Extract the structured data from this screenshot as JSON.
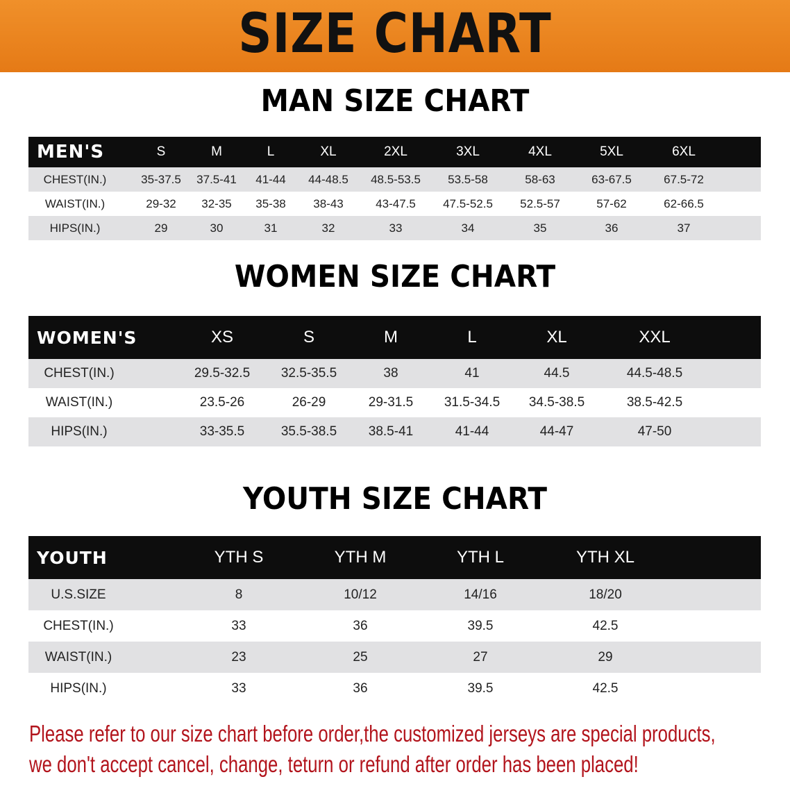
{
  "banner": {
    "title": "SIZE CHART",
    "color": "#e8821e"
  },
  "men": {
    "title": "MAN SIZE CHART",
    "header": [
      "MEN'S",
      "S",
      "M",
      "L",
      "XL",
      "2XL",
      "3XL",
      "4XL",
      "5XL",
      "6XL"
    ],
    "rows": [
      [
        "CHEST(IN.)",
        "35-37.5",
        "37.5-41",
        "41-44",
        "44-48.5",
        "48.5-53.5",
        "53.5-58",
        "58-63",
        "63-67.5",
        "67.5-72"
      ],
      [
        "WAIST(IN.)",
        "29-32",
        "32-35",
        "35-38",
        "38-43",
        "43-47.5",
        "47.5-52.5",
        "52.5-57",
        "57-62",
        "62-66.5"
      ],
      [
        "HIPS(IN.)",
        "29",
        "30",
        "31",
        "32",
        "33",
        "34",
        "35",
        "36",
        "37"
      ]
    ]
  },
  "women": {
    "title": "WOMEN SIZE CHART",
    "header": [
      "WOMEN'S",
      "XS",
      "S",
      "M",
      "L",
      "XL",
      "XXL"
    ],
    "rows": [
      [
        "CHEST(IN.)",
        "29.5-32.5",
        "32.5-35.5",
        "38",
        "41",
        "44.5",
        "44.5-48.5"
      ],
      [
        "WAIST(IN.)",
        "23.5-26",
        "26-29",
        "29-31.5",
        "31.5-34.5",
        "34.5-38.5",
        "38.5-42.5"
      ],
      [
        "HIPS(IN.)",
        "33-35.5",
        "35.5-38.5",
        "38.5-41",
        "41-44",
        "44-47",
        "47-50"
      ]
    ]
  },
  "youth": {
    "title": "YOUTH SIZE CHART",
    "header": [
      "YOUTH",
      "YTH S",
      "YTH M",
      "YTH L",
      "YTH XL"
    ],
    "rows": [
      [
        "U.S.SIZE",
        "8",
        "10/12",
        "14/16",
        "18/20"
      ],
      [
        "CHEST(IN.)",
        "33",
        "36",
        "39.5",
        "42.5"
      ],
      [
        "WAIST(IN.)",
        "23",
        "25",
        "27",
        "29"
      ],
      [
        "HIPS(IN.)",
        "33",
        "36",
        "39.5",
        "42.5"
      ]
    ]
  },
  "notice": {
    "line1": "Please refer to our size chart before order,the customized jerseys are special products,",
    "line2": "we don't accept cancel, change, teturn or refund after order has been placed!",
    "color": "#b2141c"
  }
}
